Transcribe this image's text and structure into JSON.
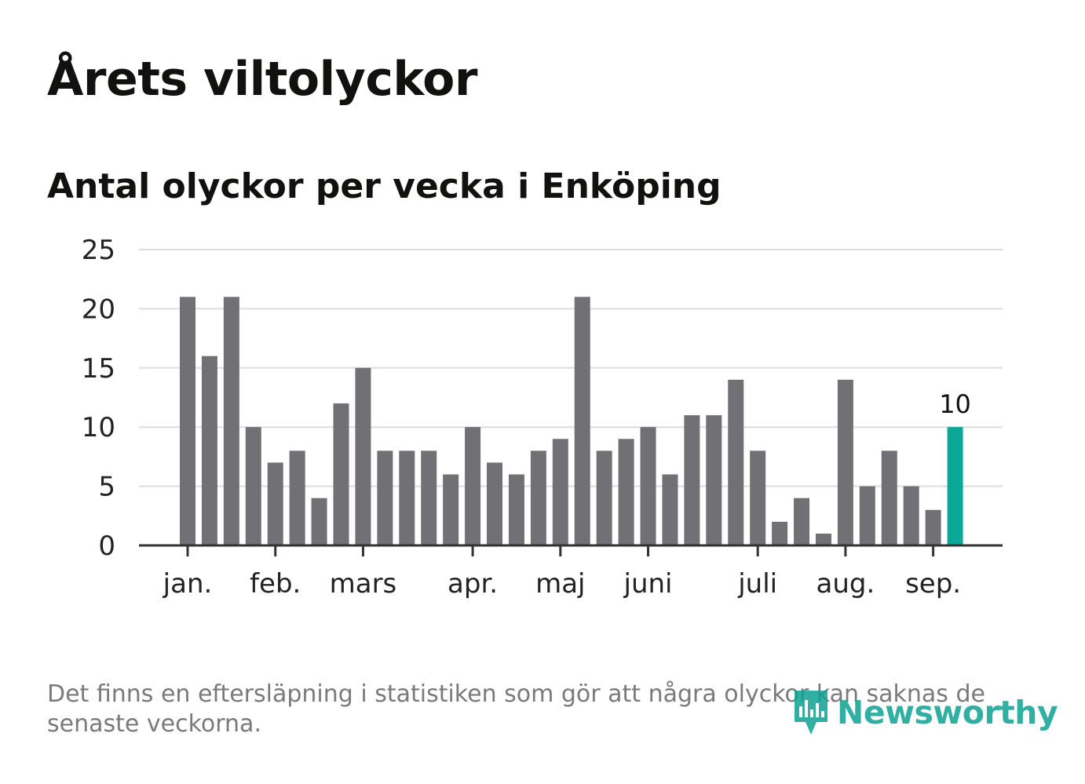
{
  "title": "Årets viltolyckor",
  "subtitle": "Antal olyckor per vecka i Enköping",
  "footnote": "Det finns en eftersläpning i statistiken som gör att några olyckor kan saknas de senaste veckorna.",
  "brand": {
    "name": "Newsworthy",
    "icon": "newsworthy-logo-icon",
    "color": "#0fa293"
  },
  "colors": {
    "bar": "#717075",
    "highlight": "#0ba898",
    "grid": "#dddddd",
    "axis": "#333333",
    "text": "#222222"
  },
  "chart_data": {
    "type": "bar",
    "ylim": [
      0,
      25
    ],
    "yticks": [
      0,
      5,
      10,
      15,
      20,
      25
    ],
    "grid": true,
    "x_tick_labels": [
      {
        "label": "jan.",
        "week": 1
      },
      {
        "label": "feb.",
        "week": 5
      },
      {
        "label": "mars",
        "week": 9
      },
      {
        "label": "apr.",
        "week": 14
      },
      {
        "label": "maj",
        "week": 18
      },
      {
        "label": "juni",
        "week": 22
      },
      {
        "label": "juli",
        "week": 27
      },
      {
        "label": "aug.",
        "week": 31
      },
      {
        "label": "sep.",
        "week": 35
      }
    ],
    "weeks": [
      1,
      2,
      3,
      4,
      5,
      6,
      7,
      8,
      9,
      10,
      11,
      12,
      13,
      14,
      15,
      16,
      17,
      18,
      19,
      20,
      21,
      22,
      23,
      24,
      25,
      26,
      27,
      28,
      29,
      30,
      31,
      32,
      33,
      34,
      35,
      36
    ],
    "values": [
      21,
      16,
      21,
      10,
      7,
      8,
      4,
      12,
      15,
      8,
      8,
      8,
      6,
      10,
      7,
      6,
      8,
      9,
      21,
      8,
      9,
      10,
      6,
      11,
      11,
      14,
      8,
      2,
      4,
      1,
      14,
      5,
      8,
      5,
      3,
      10
    ],
    "highlight_index": 35,
    "highlight_label": "10"
  }
}
